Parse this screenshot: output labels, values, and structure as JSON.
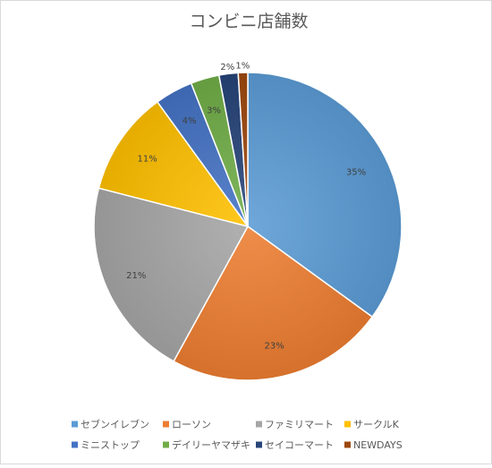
{
  "chart_data": {
    "type": "pie",
    "title": "コンビニ店舗数",
    "categories": [
      "セブンイレブン",
      "ローソン",
      "ファミリマート",
      "サークルK",
      "ミニストップ",
      "デイリーヤマザキ",
      "セイコーマート",
      "NEWDAYS"
    ],
    "values": [
      35,
      23,
      21,
      11,
      4,
      3,
      2,
      1
    ],
    "labels": [
      "35%",
      "23%",
      "21%",
      "11%",
      "4%",
      "3%",
      "2%",
      "1%"
    ],
    "colors": [
      "#5B9BD5",
      "#ED7D31",
      "#A5A5A5",
      "#FFC000",
      "#4472C4",
      "#70AD47",
      "#264478",
      "#9E480E"
    ],
    "legend_position": "bottom"
  }
}
